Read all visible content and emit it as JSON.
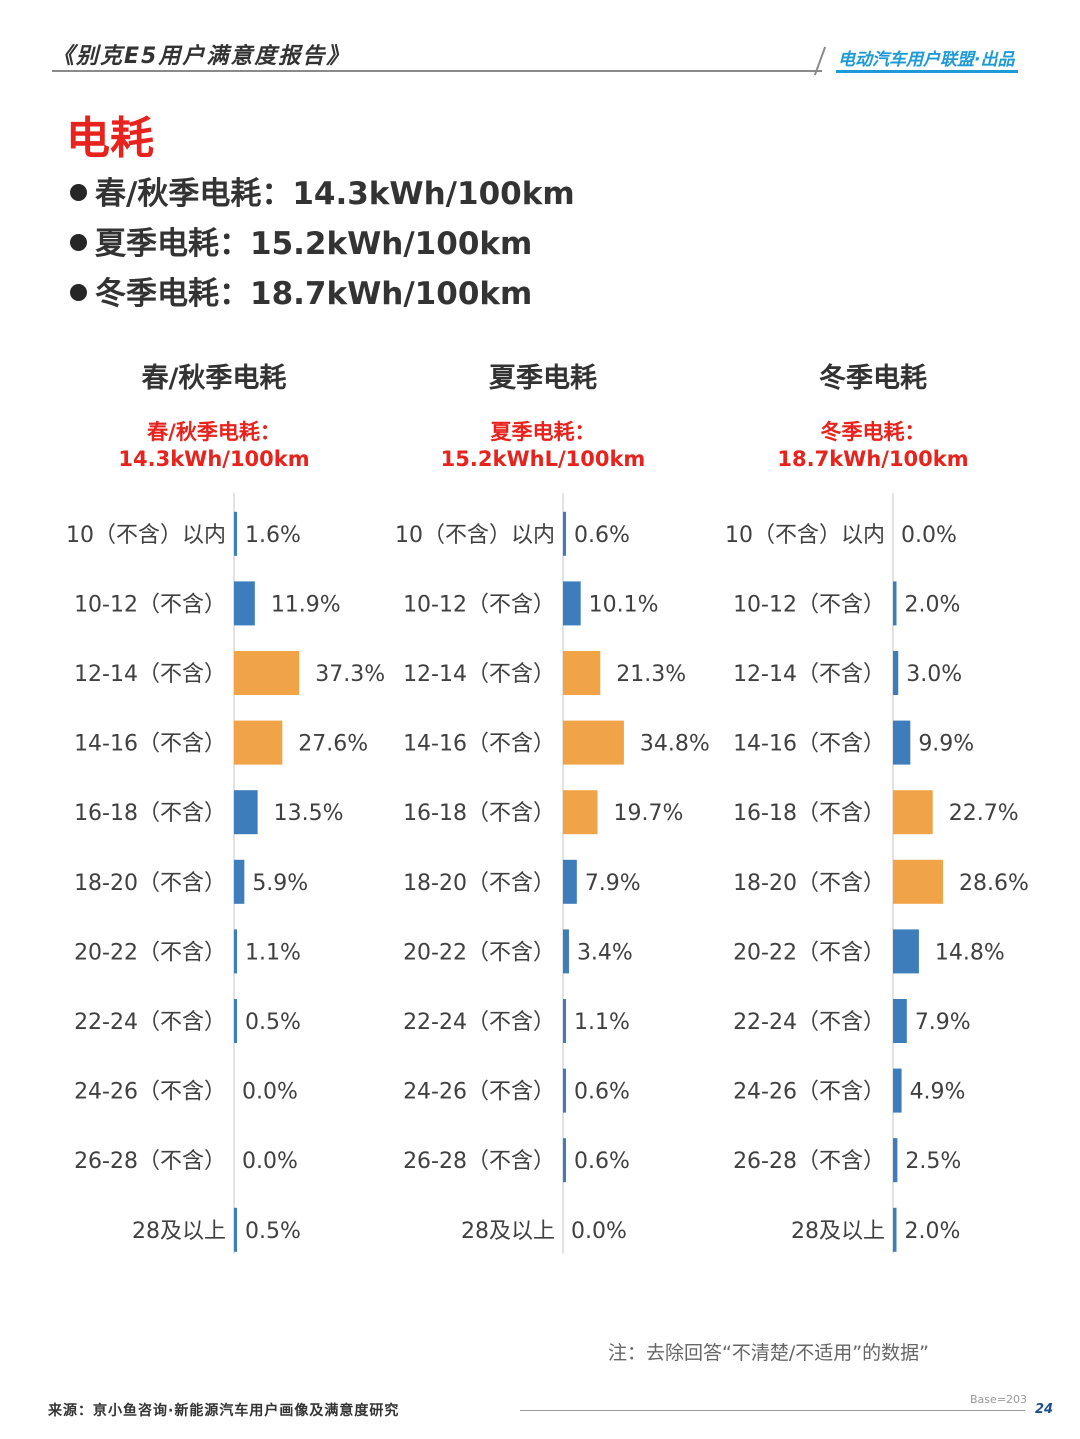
{
  "header": {
    "report_title": "《别克E5用户满意度报告》",
    "brand": "电动汽车用户联盟·出品"
  },
  "page_title": "电耗",
  "summary": [
    "春/秋季电耗：14.3kWh/100km",
    "夏季电耗：15.2kWh/100km",
    "冬季电耗：18.7kWh/100km"
  ],
  "colors": {
    "bar_blue": "#3d7dbb",
    "bar_orange": "#f0a447",
    "title_red": "#e8231e",
    "brand_blue": "#1e9bd7"
  },
  "chart_data": [
    {
      "type": "bar",
      "orientation": "horizontal",
      "title": "春/秋季电耗",
      "subtitle_line1": "春/秋季电耗：",
      "subtitle_line2": "14.3kWh/100km",
      "categories": [
        "10（不含）以内",
        "10-12（不含）",
        "12-14（不含）",
        "14-16（不含）",
        "16-18（不含）",
        "18-20（不含）",
        "20-22（不含）",
        "22-24（不含）",
        "24-26（不含）",
        "26-28（不含）",
        "28及以上"
      ],
      "values": [
        1.6,
        11.9,
        37.3,
        27.6,
        13.5,
        5.9,
        1.1,
        0.5,
        0.0,
        0.0,
        0.5
      ],
      "labels": [
        "1.6%",
        "11.9%",
        "37.3%",
        "27.6%",
        "13.5%",
        "5.9%",
        "1.1%",
        "0.5%",
        "0.0%",
        "0.0%",
        "0.5%"
      ],
      "highlight": [
        2,
        3
      ]
    },
    {
      "type": "bar",
      "orientation": "horizontal",
      "title": "夏季电耗",
      "subtitle_line1": "夏季电耗：",
      "subtitle_line2": "15.2kWhL/100km",
      "categories": [
        "10（不含）以内",
        "10-12（不含）",
        "12-14（不含）",
        "14-16（不含）",
        "16-18（不含）",
        "18-20（不含）",
        "20-22（不含）",
        "22-24（不含）",
        "24-26（不含）",
        "26-28（不含）",
        "28及以上"
      ],
      "values": [
        0.6,
        10.1,
        21.3,
        34.8,
        19.7,
        7.9,
        3.4,
        1.1,
        0.6,
        0.6,
        0.0
      ],
      "labels": [
        "0.6%",
        "10.1%",
        "21.3%",
        "34.8%",
        "19.7%",
        "7.9%",
        "3.4%",
        "1.1%",
        "0.6%",
        "0.6%",
        "0.0%"
      ],
      "highlight": [
        2,
        3,
        4
      ]
    },
    {
      "type": "bar",
      "orientation": "horizontal",
      "title": "冬季电耗",
      "subtitle_line1": "冬季电耗：",
      "subtitle_line2": "18.7kWh/100km",
      "categories": [
        "10（不含）以内",
        "10-12（不含）",
        "12-14（不含）",
        "14-16（不含）",
        "16-18（不含）",
        "18-20（不含）",
        "20-22（不含）",
        "22-24（不含）",
        "24-26（不含）",
        "26-28（不含）",
        "28及以上"
      ],
      "values": [
        0.0,
        2.0,
        3.0,
        9.9,
        22.7,
        28.6,
        14.8,
        7.9,
        4.9,
        2.5,
        2.0
      ],
      "labels": [
        "0.0%",
        "2.0%",
        "3.0%",
        "9.9%",
        "22.7%",
        "28.6%",
        "14.8%",
        "7.9%",
        "4.9%",
        "2.5%",
        "2.0%"
      ],
      "highlight": [
        4,
        5
      ]
    }
  ],
  "note": "注：去除回答“不清楚/不适用”的数据”",
  "footer": {
    "source": "来源：亰小鱼咨询·新能源汽车用户画像及满意度研究",
    "base": "Base=203",
    "page_number": "24"
  }
}
